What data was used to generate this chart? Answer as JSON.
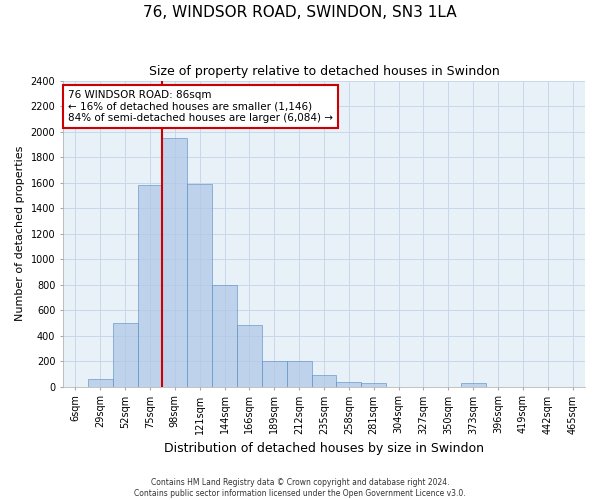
{
  "title": "76, WINDSOR ROAD, SWINDON, SN3 1LA",
  "subtitle": "Size of property relative to detached houses in Swindon",
  "xlabel": "Distribution of detached houses by size in Swindon",
  "ylabel": "Number of detached properties",
  "footer1": "Contains HM Land Registry data © Crown copyright and database right 2024.",
  "footer2": "Contains public sector information licensed under the Open Government Licence v3.0.",
  "categories": [
    "6sqm",
    "29sqm",
    "52sqm",
    "75sqm",
    "98sqm",
    "121sqm",
    "144sqm",
    "166sqm",
    "189sqm",
    "212sqm",
    "235sqm",
    "258sqm",
    "281sqm",
    "304sqm",
    "327sqm",
    "350sqm",
    "373sqm",
    "396sqm",
    "419sqm",
    "442sqm",
    "465sqm"
  ],
  "values": [
    0,
    60,
    500,
    1580,
    1950,
    1590,
    800,
    480,
    200,
    200,
    90,
    35,
    30,
    0,
    0,
    0,
    25,
    0,
    0,
    0,
    0
  ],
  "bar_color": "#aec6e8",
  "bar_edge_color": "#5a8fc2",
  "bar_alpha": 0.7,
  "grid_color": "#c8d8ea",
  "background_color": "#e8f0f8",
  "annotation_text": "76 WINDSOR ROAD: 86sqm\n← 16% of detached houses are smaller (1,146)\n84% of semi-detached houses are larger (6,084) →",
  "annotation_fontsize": 7.5,
  "property_sqm": 86,
  "ylim": [
    0,
    2400
  ],
  "yticks": [
    0,
    200,
    400,
    600,
    800,
    1000,
    1200,
    1400,
    1600,
    1800,
    2000,
    2200,
    2400
  ],
  "title_fontsize": 11,
  "subtitle_fontsize": 9,
  "ylabel_fontsize": 8,
  "xlabel_fontsize": 9,
  "tick_fontsize": 7
}
